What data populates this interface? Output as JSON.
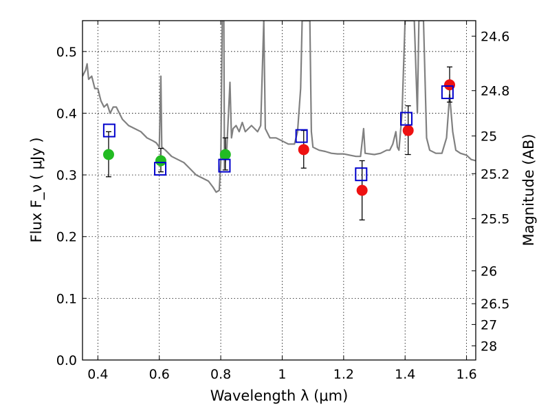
{
  "chart_data": {
    "type": "scatter",
    "xlabel": "Wavelength  λ (μm)",
    "ylabel": "Flux  F_ν  ( μJy )",
    "y2label": "Magnitude (AB)",
    "xlim": [
      0.35,
      1.63
    ],
    "ylim": [
      0.0,
      0.55
    ],
    "grid": true,
    "x_ticks": [
      {
        "value": 0.4,
        "label": "0.4"
      },
      {
        "value": 0.6,
        "label": "0.6"
      },
      {
        "value": 0.8,
        "label": "0.8"
      },
      {
        "value": 1.0,
        "label": "1"
      },
      {
        "value": 1.2,
        "label": "1.2"
      },
      {
        "value": 1.4,
        "label": "1.4"
      },
      {
        "value": 1.6,
        "label": "1.6"
      }
    ],
    "y_ticks": [
      {
        "value": 0.0,
        "label": "0.0"
      },
      {
        "value": 0.1,
        "label": "0.1"
      },
      {
        "value": 0.2,
        "label": "0.2"
      },
      {
        "value": 0.3,
        "label": "0.3"
      },
      {
        "value": 0.4,
        "label": "0.4"
      },
      {
        "value": 0.5,
        "label": "0.5"
      }
    ],
    "y2_ticks": [
      {
        "mag": 24.6,
        "label": "24.6"
      },
      {
        "mag": 24.8,
        "label": "24.8"
      },
      {
        "mag": 25.0,
        "label": "25"
      },
      {
        "mag": 25.2,
        "label": "25.2"
      },
      {
        "mag": 25.5,
        "label": "25.5"
      },
      {
        "mag": 26.0,
        "label": "26"
      },
      {
        "mag": 26.5,
        "label": "26.5"
      },
      {
        "mag": 27.0,
        "label": "27"
      },
      {
        "mag": 28.0,
        "label": "28"
      }
    ],
    "colors": {
      "green": "#22bb22",
      "red": "#ee1111",
      "model_box": "#0000cc",
      "spectrum": "#808080",
      "errorbar": "#000000"
    },
    "series": [
      {
        "marker": "circle",
        "color": "green",
        "points": [
          {
            "x": 0.435,
            "y": 0.333,
            "ylo": 0.297,
            "yhi": 0.37
          },
          {
            "x": 0.605,
            "y": 0.323,
            "ylo": 0.305,
            "yhi": 0.343
          },
          {
            "x": 0.815,
            "y": 0.333,
            "ylo": 0.308,
            "yhi": 0.36
          }
        ]
      },
      {
        "marker": "circle",
        "color": "red",
        "points": [
          {
            "x": 1.07,
            "y": 0.341,
            "ylo": 0.311,
            "yhi": 0.372
          },
          {
            "x": 1.26,
            "y": 0.275,
            "ylo": 0.227,
            "yhi": 0.323
          },
          {
            "x": 1.41,
            "y": 0.372,
            "ylo": 0.333,
            "yhi": 0.412
          },
          {
            "x": 1.545,
            "y": 0.446,
            "ylo": 0.418,
            "yhi": 0.475
          }
        ]
      },
      {
        "marker": "open-square",
        "color": "model_box",
        "points": [
          {
            "x": 0.437,
            "y": 0.372
          },
          {
            "x": 0.603,
            "y": 0.31
          },
          {
            "x": 0.812,
            "y": 0.315
          },
          {
            "x": 1.063,
            "y": 0.363
          },
          {
            "x": 1.257,
            "y": 0.301
          },
          {
            "x": 1.404,
            "y": 0.391
          },
          {
            "x": 1.538,
            "y": 0.434
          }
        ]
      },
      {
        "type": "line",
        "color": "spectrum",
        "points": [
          [
            0.35,
            0.46
          ],
          [
            0.36,
            0.47
          ],
          [
            0.365,
            0.48
          ],
          [
            0.37,
            0.455
          ],
          [
            0.38,
            0.46
          ],
          [
            0.39,
            0.44
          ],
          [
            0.4,
            0.44
          ],
          [
            0.41,
            0.42
          ],
          [
            0.42,
            0.41
          ],
          [
            0.43,
            0.415
          ],
          [
            0.44,
            0.4
          ],
          [
            0.45,
            0.41
          ],
          [
            0.46,
            0.41
          ],
          [
            0.47,
            0.4
          ],
          [
            0.48,
            0.39
          ],
          [
            0.49,
            0.385
          ],
          [
            0.5,
            0.38
          ],
          [
            0.52,
            0.375
          ],
          [
            0.54,
            0.37
          ],
          [
            0.56,
            0.36
          ],
          [
            0.58,
            0.355
          ],
          [
            0.59,
            0.352
          ],
          [
            0.6,
            0.345
          ],
          [
            0.605,
            0.46
          ],
          [
            0.608,
            0.345
          ],
          [
            0.62,
            0.34
          ],
          [
            0.64,
            0.33
          ],
          [
            0.66,
            0.325
          ],
          [
            0.68,
            0.32
          ],
          [
            0.7,
            0.31
          ],
          [
            0.72,
            0.3
          ],
          [
            0.74,
            0.295
          ],
          [
            0.76,
            0.29
          ],
          [
            0.775,
            0.28
          ],
          [
            0.785,
            0.272
          ],
          [
            0.795,
            0.275
          ],
          [
            0.8,
            0.32
          ],
          [
            0.805,
            0.55
          ],
          [
            0.81,
            0.55
          ],
          [
            0.812,
            0.31
          ],
          [
            0.82,
            0.345
          ],
          [
            0.83,
            0.45
          ],
          [
            0.835,
            0.36
          ],
          [
            0.84,
            0.375
          ],
          [
            0.85,
            0.38
          ],
          [
            0.86,
            0.37
          ],
          [
            0.87,
            0.385
          ],
          [
            0.88,
            0.37
          ],
          [
            0.89,
            0.375
          ],
          [
            0.9,
            0.38
          ],
          [
            0.91,
            0.375
          ],
          [
            0.92,
            0.37
          ],
          [
            0.93,
            0.38
          ],
          [
            0.94,
            0.55
          ],
          [
            0.945,
            0.375
          ],
          [
            0.96,
            0.36
          ],
          [
            0.98,
            0.36
          ],
          [
            1.0,
            0.355
          ],
          [
            1.02,
            0.35
          ],
          [
            1.04,
            0.35
          ],
          [
            1.05,
            0.37
          ],
          [
            1.06,
            0.44
          ],
          [
            1.065,
            0.55
          ],
          [
            1.09,
            0.55
          ],
          [
            1.095,
            0.37
          ],
          [
            1.1,
            0.345
          ],
          [
            1.12,
            0.34
          ],
          [
            1.14,
            0.338
          ],
          [
            1.16,
            0.335
          ],
          [
            1.18,
            0.334
          ],
          [
            1.2,
            0.334
          ],
          [
            1.22,
            0.332
          ],
          [
            1.24,
            0.33
          ],
          [
            1.255,
            0.33
          ],
          [
            1.265,
            0.375
          ],
          [
            1.27,
            0.335
          ],
          [
            1.3,
            0.333
          ],
          [
            1.32,
            0.335
          ],
          [
            1.34,
            0.34
          ],
          [
            1.35,
            0.34
          ],
          [
            1.36,
            0.35
          ],
          [
            1.37,
            0.37
          ],
          [
            1.375,
            0.345
          ],
          [
            1.38,
            0.34
          ],
          [
            1.39,
            0.4
          ],
          [
            1.4,
            0.55
          ],
          [
            1.43,
            0.55
          ],
          [
            1.44,
            0.4
          ],
          [
            1.445,
            0.55
          ],
          [
            1.46,
            0.55
          ],
          [
            1.47,
            0.36
          ],
          [
            1.48,
            0.34
          ],
          [
            1.5,
            0.335
          ],
          [
            1.52,
            0.335
          ],
          [
            1.535,
            0.36
          ],
          [
            1.545,
            0.43
          ],
          [
            1.555,
            0.37
          ],
          [
            1.565,
            0.34
          ],
          [
            1.58,
            0.335
          ],
          [
            1.6,
            0.332
          ],
          [
            1.615,
            0.325
          ],
          [
            1.63,
            0.323
          ]
        ]
      }
    ]
  }
}
